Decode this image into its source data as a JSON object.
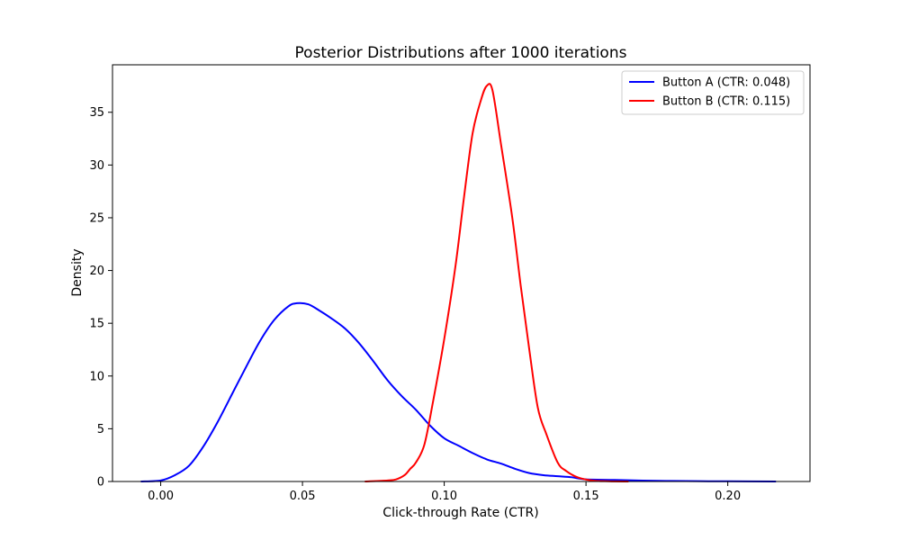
{
  "chart_data": {
    "type": "line",
    "title": "Posterior Distributions after 1000 iterations",
    "xlabel": "Click-through Rate (CTR)",
    "ylabel": "Density",
    "xlim": [
      -0.017,
      0.229
    ],
    "ylim": [
      0,
      39.5
    ],
    "x_ticks": [
      0.0,
      0.05,
      0.1,
      0.15,
      0.2
    ],
    "x_tick_labels": [
      "0.00",
      "0.05",
      "0.10",
      "0.15",
      "0.20"
    ],
    "y_ticks": [
      0,
      5,
      10,
      15,
      20,
      25,
      30,
      35
    ],
    "y_tick_labels": [
      "0",
      "5",
      "10",
      "15",
      "20",
      "25",
      "30",
      "35"
    ],
    "grid": false,
    "legend_position": "top-right",
    "series": [
      {
        "name": "Button A (CTR: 0.048)",
        "color": "#0000ff",
        "points": [
          [
            -0.007,
            0.0
          ],
          [
            0.0,
            0.1
          ],
          [
            0.005,
            0.6
          ],
          [
            0.01,
            1.5
          ],
          [
            0.015,
            3.3
          ],
          [
            0.02,
            5.6
          ],
          [
            0.025,
            8.2
          ],
          [
            0.03,
            10.8
          ],
          [
            0.035,
            13.3
          ],
          [
            0.04,
            15.3
          ],
          [
            0.045,
            16.6
          ],
          [
            0.048,
            16.9
          ],
          [
            0.052,
            16.8
          ],
          [
            0.056,
            16.2
          ],
          [
            0.06,
            15.5
          ],
          [
            0.065,
            14.5
          ],
          [
            0.07,
            13.1
          ],
          [
            0.075,
            11.4
          ],
          [
            0.08,
            9.6
          ],
          [
            0.085,
            8.1
          ],
          [
            0.09,
            6.8
          ],
          [
            0.095,
            5.3
          ],
          [
            0.1,
            4.1
          ],
          [
            0.105,
            3.4
          ],
          [
            0.11,
            2.7
          ],
          [
            0.115,
            2.1
          ],
          [
            0.12,
            1.7
          ],
          [
            0.125,
            1.2
          ],
          [
            0.13,
            0.8
          ],
          [
            0.135,
            0.6
          ],
          [
            0.14,
            0.5
          ],
          [
            0.145,
            0.4
          ],
          [
            0.15,
            0.2
          ],
          [
            0.16,
            0.15
          ],
          [
            0.17,
            0.08
          ],
          [
            0.18,
            0.05
          ],
          [
            0.19,
            0.03
          ],
          [
            0.2,
            0.02
          ],
          [
            0.217,
            0.0
          ]
        ]
      },
      {
        "name": "Button B (CTR: 0.115)",
        "color": "#ff0000",
        "points": [
          [
            0.072,
            0.0
          ],
          [
            0.08,
            0.1
          ],
          [
            0.083,
            0.2
          ],
          [
            0.086,
            0.6
          ],
          [
            0.088,
            1.2
          ],
          [
            0.09,
            1.8
          ],
          [
            0.093,
            3.5
          ],
          [
            0.096,
            7.5
          ],
          [
            0.1,
            13.5
          ],
          [
            0.104,
            20.5
          ],
          [
            0.107,
            27.0
          ],
          [
            0.11,
            33.0
          ],
          [
            0.113,
            36.2
          ],
          [
            0.115,
            37.5
          ],
          [
            0.117,
            37.1
          ],
          [
            0.12,
            32.0
          ],
          [
            0.124,
            25.0
          ],
          [
            0.127,
            18.5
          ],
          [
            0.13,
            12.5
          ],
          [
            0.133,
            7.0
          ],
          [
            0.136,
            4.5
          ],
          [
            0.14,
            1.8
          ],
          [
            0.143,
            1.0
          ],
          [
            0.147,
            0.4
          ],
          [
            0.152,
            0.1
          ],
          [
            0.158,
            0.02
          ],
          [
            0.165,
            0.0
          ]
        ]
      }
    ]
  }
}
